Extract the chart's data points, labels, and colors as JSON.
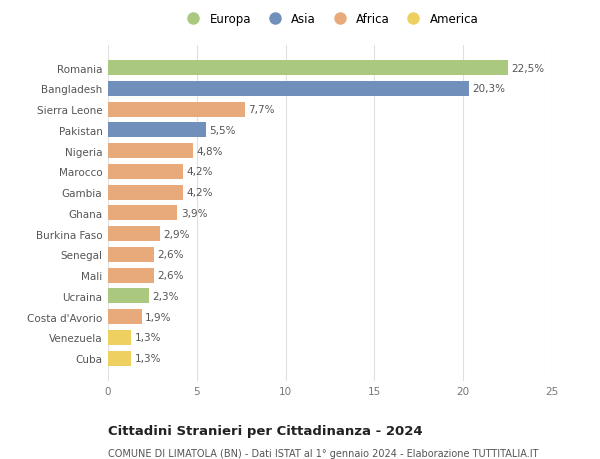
{
  "countries": [
    "Romania",
    "Bangladesh",
    "Sierra Leone",
    "Pakistan",
    "Nigeria",
    "Marocco",
    "Gambia",
    "Ghana",
    "Burkina Faso",
    "Senegal",
    "Mali",
    "Ucraina",
    "Costa d'Avorio",
    "Venezuela",
    "Cuba"
  ],
  "values": [
    22.5,
    20.3,
    7.7,
    5.5,
    4.8,
    4.2,
    4.2,
    3.9,
    2.9,
    2.6,
    2.6,
    2.3,
    1.9,
    1.3,
    1.3
  ],
  "labels": [
    "22,5%",
    "20,3%",
    "7,7%",
    "5,5%",
    "4,8%",
    "4,2%",
    "4,2%",
    "3,9%",
    "2,9%",
    "2,6%",
    "2,6%",
    "2,3%",
    "1,9%",
    "1,3%",
    "1,3%"
  ],
  "continents": [
    "Europa",
    "Asia",
    "Africa",
    "Asia",
    "Africa",
    "Africa",
    "Africa",
    "Africa",
    "Africa",
    "Africa",
    "Africa",
    "Europa",
    "Africa",
    "America",
    "America"
  ],
  "colors": {
    "Europa": "#aac97e",
    "Asia": "#7090bb",
    "Africa": "#e8aa7a",
    "America": "#edd060"
  },
  "legend_order": [
    "Europa",
    "Asia",
    "Africa",
    "America"
  ],
  "xlim": [
    0,
    25
  ],
  "xticks": [
    0,
    5,
    10,
    15,
    20,
    25
  ],
  "title": "Cittadini Stranieri per Cittadinanza - 2024",
  "subtitle": "COMUNE DI LIMATOLA (BN) - Dati ISTAT al 1° gennaio 2024 - Elaborazione TUTTITALIA.IT",
  "bg_color": "#ffffff",
  "grid_color": "#e0e0e0",
  "bar_height": 0.72,
  "label_fontsize": 7.5,
  "tick_fontsize": 7.5,
  "title_fontsize": 9.5,
  "subtitle_fontsize": 7.0
}
